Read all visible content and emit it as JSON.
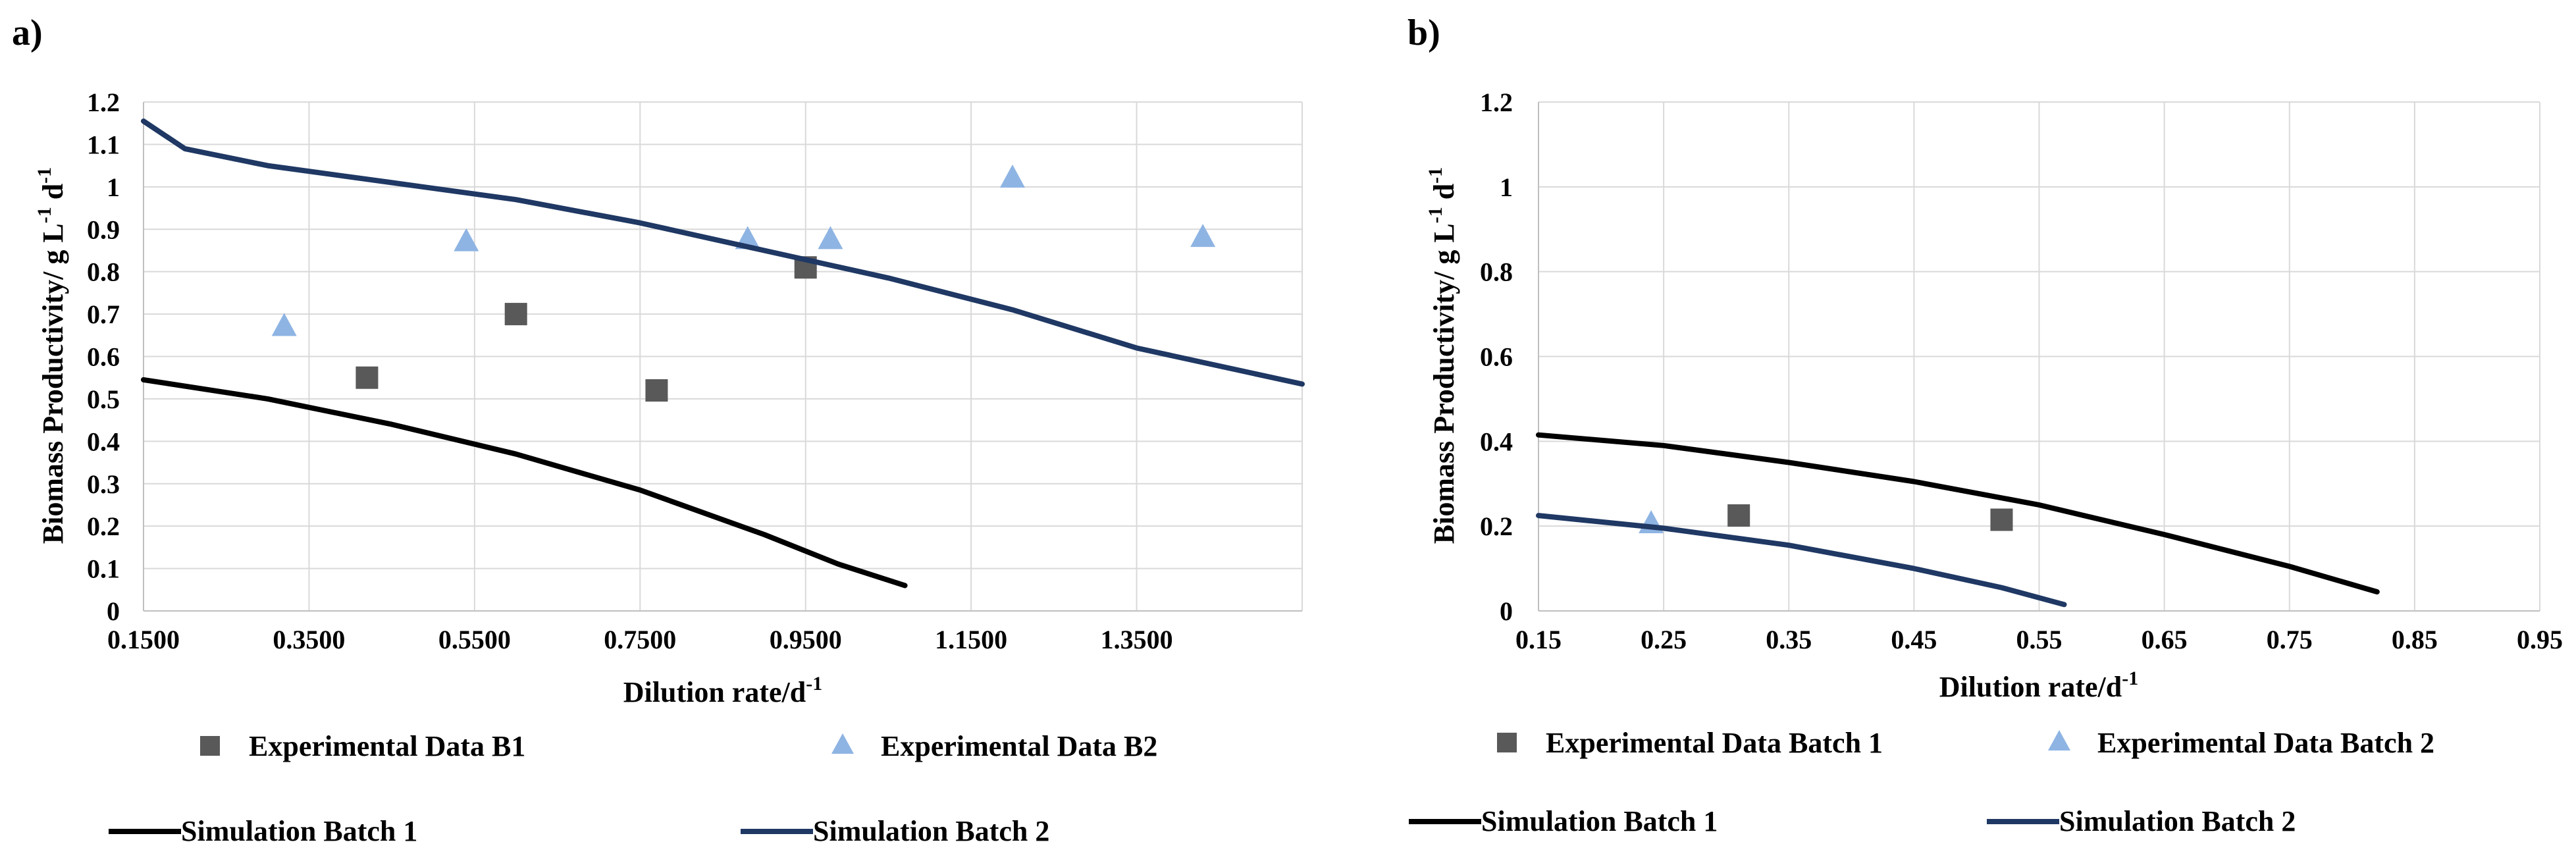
{
  "chart_data": [
    {
      "panel_label": "a)",
      "type": "scatter",
      "xlabel": "Dilution rate/d",
      "xlabel_sup": "-1",
      "ylabel_parts": [
        "Biomass Productivity/ g L",
        "-1",
        " d",
        "-1"
      ],
      "xlim": [
        0.15,
        1.55
      ],
      "ylim": [
        0,
        1.2
      ],
      "xticks": [
        0.15,
        0.35,
        0.55,
        0.75,
        0.95,
        1.15,
        1.35
      ],
      "xtick_labels": [
        "0.1500",
        "0.3500",
        "0.5500",
        "0.7500",
        "0.9500",
        "1.1500",
        "1.3500"
      ],
      "yticks": [
        0,
        0.1,
        0.2,
        0.3,
        0.4,
        0.5,
        0.6,
        0.7,
        0.8,
        0.9,
        1,
        1.1,
        1.2
      ],
      "ytick_labels": [
        "0",
        "0.1",
        "0.2",
        "0.3",
        "0.4",
        "0.5",
        "0.6",
        "0.7",
        "0.8",
        "0.9",
        "1",
        "1.1",
        "1.2"
      ],
      "grid": true,
      "series": [
        {
          "name": "Experimental Data B1",
          "kind": "marker",
          "marker": "square",
          "color": "#595959",
          "x": [
            0.42,
            0.6,
            0.77,
            0.95
          ],
          "y": [
            0.55,
            0.7,
            0.52,
            0.81
          ]
        },
        {
          "name": "Experimental Data B2",
          "kind": "marker",
          "marker": "triangle",
          "color": "#8EB4E3",
          "x": [
            0.32,
            0.54,
            0.88,
            0.98,
            1.2,
            1.43
          ],
          "y": [
            0.67,
            0.87,
            0.875,
            0.875,
            1.02,
            0.88
          ]
        },
        {
          "name": "Simulation Batch 1",
          "kind": "line",
          "color": "#000000",
          "x": [
            0.15,
            0.3,
            0.45,
            0.6,
            0.75,
            0.9,
            0.99,
            1.07
          ],
          "y": [
            0.545,
            0.5,
            0.44,
            0.37,
            0.285,
            0.18,
            0.11,
            0.06
          ]
        },
        {
          "name": "Simulation Batch 2",
          "kind": "line",
          "color": "#1F3864",
          "x": [
            0.15,
            0.2,
            0.3,
            0.45,
            0.6,
            0.75,
            0.9,
            1.05,
            1.2,
            1.35,
            1.55
          ],
          "y": [
            1.155,
            1.09,
            1.05,
            1.01,
            0.97,
            0.915,
            0.85,
            0.785,
            0.71,
            0.62,
            0.535
          ]
        }
      ],
      "legend_position": "bottom"
    },
    {
      "panel_label": "b)",
      "type": "scatter",
      "xlabel": "Dilution rate/d",
      "xlabel_sup": "-1",
      "ylabel_parts": [
        "Biomass Productivity/ g L",
        "-1",
        " d",
        "-1"
      ],
      "xlim": [
        0.15,
        0.95
      ],
      "ylim": [
        0,
        1.2
      ],
      "xticks": [
        0.15,
        0.25,
        0.35,
        0.45,
        0.55,
        0.65,
        0.75,
        0.85,
        0.95
      ],
      "xtick_labels": [
        "0.15",
        "0.25",
        "0.35",
        "0.45",
        "0.55",
        "0.65",
        "0.75",
        "0.85",
        "0.95"
      ],
      "yticks": [
        0,
        0.2,
        0.4,
        0.6,
        0.8,
        1,
        1.2
      ],
      "ytick_labels": [
        "0",
        "0.2",
        "0.4",
        "0.6",
        "0.8",
        "1",
        "1.2"
      ],
      "grid": true,
      "series": [
        {
          "name": "Experimental Data Batch 1",
          "kind": "marker",
          "marker": "square",
          "color": "#595959",
          "x": [
            0.31,
            0.52
          ],
          "y": [
            0.225,
            0.215
          ]
        },
        {
          "name": "Experimental Data Batch 2",
          "kind": "marker",
          "marker": "triangle",
          "color": "#8EB4E3",
          "x": [
            0.24
          ],
          "y": [
            0.205
          ]
        },
        {
          "name": "Simulation Batch 1",
          "kind": "line",
          "color": "#000000",
          "x": [
            0.15,
            0.25,
            0.35,
            0.45,
            0.55,
            0.65,
            0.75,
            0.82
          ],
          "y": [
            0.415,
            0.39,
            0.35,
            0.305,
            0.25,
            0.18,
            0.105,
            0.045
          ]
        },
        {
          "name": "Simulation Batch 2",
          "kind": "line",
          "color": "#1F3864",
          "x": [
            0.15,
            0.25,
            0.35,
            0.45,
            0.52,
            0.57
          ],
          "y": [
            0.225,
            0.195,
            0.155,
            0.1,
            0.055,
            0.015
          ]
        }
      ],
      "legend_position": "bottom"
    }
  ]
}
